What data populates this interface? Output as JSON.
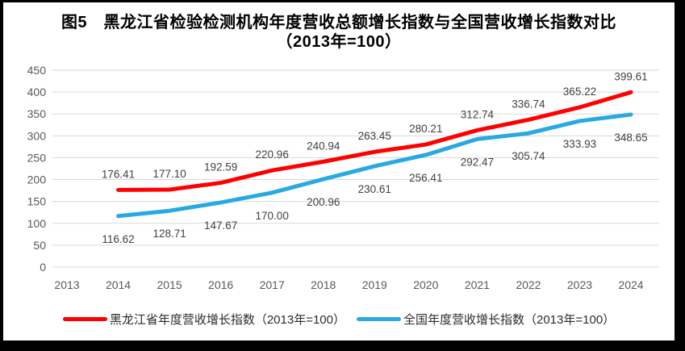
{
  "title": {
    "line1": "图5　黑龙江省检验检测机构年度营收总额增长指数与全国营收增长指数对比",
    "line2": "（2013年=100）"
  },
  "chart_data": {
    "type": "line",
    "title": "图5 黑龙江省检验检测机构年度营收总额增长指数与全国营收增长指数对比（2013年=100）",
    "categories": [
      "2013",
      "2014",
      "2015",
      "2016",
      "2017",
      "2018",
      "2019",
      "2020",
      "2021",
      "2022",
      "2023",
      "2024"
    ],
    "series": [
      {
        "name": "黑龙江省年度营收增长指数（2013年=100）",
        "color": "#FE0000",
        "label_position": "above",
        "values": [
          null,
          176.41,
          177.1,
          192.59,
          220.96,
          240.94,
          263.45,
          280.21,
          312.74,
          336.74,
          365.22,
          399.61
        ]
      },
      {
        "name": "全国年度营收增长指数（2013年=100）",
        "color": "#29A9E1",
        "label_position": "below",
        "values": [
          null,
          116.62,
          128.71,
          147.67,
          170.0,
          200.96,
          230.61,
          256.41,
          292.47,
          305.74,
          333.93,
          348.65
        ]
      }
    ],
    "xlabel": "",
    "ylabel": "",
    "ylim": [
      0,
      450
    ],
    "ytick_step": 50,
    "grid": true,
    "legend_position": "bottom",
    "data_labels": true,
    "data_label_decimals": 2,
    "colors": {
      "axis_label": "#595959",
      "gridline": "#D9D9D9",
      "data_label": "#404040"
    }
  }
}
